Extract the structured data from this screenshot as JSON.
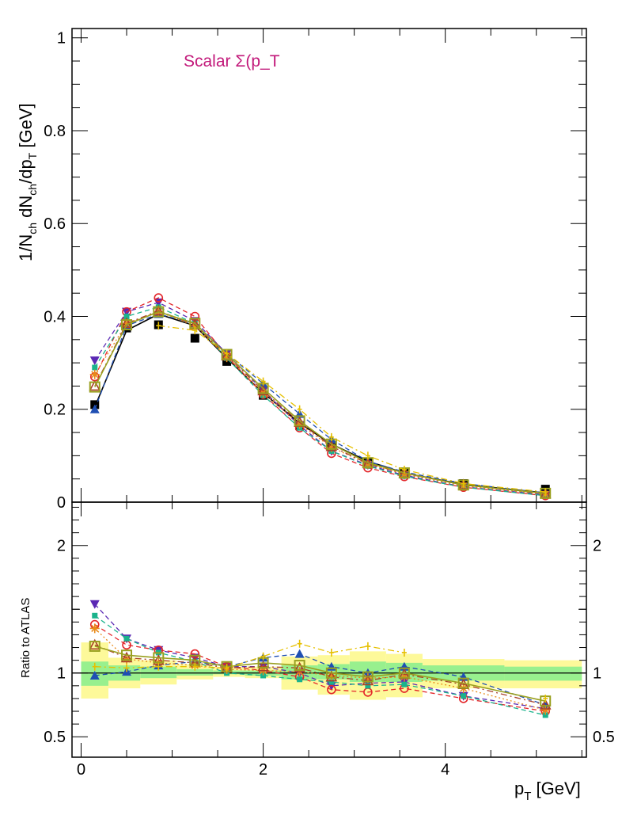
{
  "chart_data": [
    {
      "type": "line",
      "panel": "top",
      "title": "Scalar Σ(p_T",
      "title_color": "#c2187a",
      "ylabel": "1/N_ch dN_ch/dp_T [GeV]",
      "ylabel_parts": {
        "base": "1/N",
        "sub1": "ch",
        "mid": " dN",
        "sub2": "ch",
        "mid2": "/dp",
        "sub3": "T",
        "tail": " [GeV]"
      },
      "xlim": [
        -0.1,
        5.55
      ],
      "ylim": [
        0,
        1.02
      ],
      "y_ticks": [
        0,
        0.2,
        0.4,
        0.6,
        0.8,
        1
      ],
      "y_tick_labels": [
        "0",
        "0.2",
        "0.4",
        "0.6",
        "0.8",
        "1"
      ],
      "x": [
        0.15,
        0.5,
        0.85,
        1.25,
        1.6,
        2.0,
        2.4,
        2.75,
        3.15,
        3.55,
        4.2,
        5.1
      ],
      "series": [
        {
          "name": "",
          "marker": "square-filled",
          "color": "#000000",
          "style": "none",
          "y": [
            0.21,
            0.375,
            0.382,
            0.353,
            0.303,
            0.23,
            0.165,
            0.12,
            0.085,
            0.062,
            0.04,
            0.028
          ]
        },
        {
          "name": "",
          "marker": "none",
          "color": "#000000",
          "style": "solid",
          "y": [
            0.205,
            0.37,
            0.405,
            0.38,
            0.31,
            0.235,
            0.17,
            0.125,
            0.088,
            0.063,
            0.038,
            0.02
          ]
        },
        {
          "name": "",
          "marker": "triangle-down-filled",
          "color": "#5a28b4",
          "style": "dashed",
          "y": [
            0.305,
            0.41,
            0.43,
            0.39,
            0.32,
            0.24,
            0.165,
            0.11,
            0.08,
            0.058,
            0.033,
            0.016
          ]
        },
        {
          "name": "",
          "marker": "circle-open",
          "color": "#e3262a",
          "style": "dashed",
          "y": [
            0.27,
            0.41,
            0.44,
            0.4,
            0.315,
            0.232,
            0.16,
            0.105,
            0.074,
            0.055,
            0.032,
            0.014
          ]
        },
        {
          "name": "",
          "marker": "triangle-up-filled",
          "color": "#1f4fb3",
          "style": "dashed",
          "y": [
            0.2,
            0.38,
            0.405,
            0.385,
            0.32,
            0.255,
            0.19,
            0.135,
            0.088,
            0.065,
            0.04,
            0.02
          ]
        },
        {
          "name": "",
          "marker": "square-filled-small",
          "color": "#1ab38c",
          "style": "dashed",
          "y": [
            0.29,
            0.4,
            0.42,
            0.385,
            0.31,
            0.23,
            0.16,
            0.11,
            0.078,
            0.056,
            0.032,
            0.014
          ]
        },
        {
          "name": "",
          "marker": "star",
          "color": "#e88a1a",
          "style": "dotted",
          "y": [
            0.275,
            0.385,
            0.41,
            0.38,
            0.312,
            0.235,
            0.168,
            0.118,
            0.082,
            0.06,
            0.035,
            0.017
          ]
        },
        {
          "name": "",
          "marker": "triangle-up-open",
          "color": "#a8402a",
          "style": "dashdot",
          "y": [
            0.25,
            0.385,
            0.412,
            0.382,
            0.315,
            0.24,
            0.172,
            0.12,
            0.083,
            0.062,
            0.037,
            0.018
          ]
        },
        {
          "name": "",
          "marker": "square-open",
          "color": "#9aa020",
          "style": "solid",
          "y": [
            0.248,
            0.382,
            0.41,
            0.385,
            0.318,
            0.245,
            0.175,
            0.125,
            0.085,
            0.063,
            0.037,
            0.019
          ]
        },
        {
          "name": "",
          "marker": "plus-small",
          "color": "#e6c000",
          "style": "dashdot",
          "y": [
            null,
            null,
            0.38,
            0.37,
            0.32,
            0.26,
            0.2,
            0.14,
            0.1,
            0.07,
            0.04,
            0.022
          ]
        }
      ]
    },
    {
      "type": "line",
      "panel": "bottom",
      "ylabel": "Ratio to ATLAS",
      "xlabel": "p_T [GeV]",
      "xlabel_parts": {
        "base": "p",
        "sub": "T",
        "tail": " [GeV]"
      },
      "xlim": [
        -0.1,
        5.55
      ],
      "ylim": [
        0.34,
        2.34
      ],
      "x_ticks": [
        0,
        2,
        4
      ],
      "x_tick_labels": [
        "0",
        "2",
        "4"
      ],
      "y_ticks": [
        0.5,
        1,
        2
      ],
      "y_tick_labels": [
        "0.5",
        "1",
        "2"
      ],
      "reference_line": 1,
      "bands": [
        {
          "x0": 0.0,
          "x1": 0.3,
          "yellow": [
            0.8,
            1.24
          ],
          "green": [
            0.9,
            1.09
          ]
        },
        {
          "x0": 0.3,
          "x1": 0.65,
          "yellow": [
            0.88,
            1.12
          ],
          "green": [
            0.94,
            1.06
          ]
        },
        {
          "x0": 0.65,
          "x1": 1.05,
          "yellow": [
            0.91,
            1.1
          ],
          "green": [
            0.96,
            1.05
          ]
        },
        {
          "x0": 1.05,
          "x1": 1.45,
          "yellow": [
            0.95,
            1.07
          ],
          "green": [
            0.98,
            1.03
          ]
        },
        {
          "x0": 1.45,
          "x1": 1.8,
          "yellow": [
            0.97,
            1.05
          ],
          "green": [
            0.99,
            1.02
          ]
        },
        {
          "x0": 1.8,
          "x1": 2.2,
          "yellow": [
            0.96,
            1.05
          ],
          "green": [
            0.98,
            1.02
          ]
        },
        {
          "x0": 2.2,
          "x1": 2.6,
          "yellow": [
            0.87,
            1.13
          ],
          "green": [
            0.95,
            1.06
          ]
        },
        {
          "x0": 2.6,
          "x1": 2.95,
          "yellow": [
            0.83,
            1.14
          ],
          "green": [
            0.95,
            1.07
          ]
        },
        {
          "x0": 2.95,
          "x1": 3.35,
          "yellow": [
            0.79,
            1.17
          ],
          "green": [
            0.93,
            1.09
          ]
        },
        {
          "x0": 3.35,
          "x1": 3.75,
          "yellow": [
            0.81,
            1.15
          ],
          "green": [
            0.93,
            1.08
          ]
        },
        {
          "x0": 3.75,
          "x1": 4.65,
          "yellow": [
            0.88,
            1.11
          ],
          "green": [
            0.94,
            1.06
          ]
        },
        {
          "x0": 4.65,
          "x1": 5.5,
          "yellow": [
            0.88,
            1.1
          ],
          "green": [
            0.94,
            1.05
          ]
        }
      ],
      "series": [
        {
          "name": "",
          "marker": "triangle-down-filled",
          "color": "#5a28b4",
          "style": "dashed",
          "y": [
            1.54,
            1.27,
            1.18,
            1.12,
            1.05,
            1.05,
            1.0,
            0.9,
            0.92,
            0.93,
            0.82,
            0.72
          ]
        },
        {
          "name": "",
          "marker": "circle-open",
          "color": "#e3262a",
          "style": "dashed",
          "y": [
            1.38,
            1.22,
            1.18,
            1.15,
            1.05,
            1.02,
            0.97,
            0.87,
            0.85,
            0.88,
            0.8,
            0.7
          ]
        },
        {
          "name": "",
          "marker": "triangle-up-filled",
          "color": "#1f4fb3",
          "style": "dashed",
          "y": [
            0.98,
            1.01,
            1.06,
            1.09,
            1.05,
            1.12,
            1.15,
            1.05,
            1.0,
            1.05,
            0.97,
            0.75
          ]
        },
        {
          "name": "",
          "marker": "square-filled-small",
          "color": "#1ab38c",
          "style": "dashed",
          "y": [
            1.45,
            1.27,
            1.16,
            1.09,
            1.0,
            0.98,
            0.95,
            0.93,
            0.9,
            0.91,
            0.82,
            0.67
          ]
        },
        {
          "name": "",
          "marker": "star",
          "color": "#e88a1a",
          "style": "dotted",
          "y": [
            1.35,
            1.11,
            1.08,
            1.06,
            1.03,
            1.02,
            1.01,
            0.98,
            0.96,
            0.97,
            0.88,
            0.71
          ]
        },
        {
          "name": "",
          "marker": "triangle-up-open",
          "color": "#a8402a",
          "style": "dashdot",
          "y": [
            1.22,
            1.12,
            1.1,
            1.08,
            1.04,
            1.05,
            1.04,
            0.97,
            0.94,
            0.99,
            0.91,
            0.75
          ]
        },
        {
          "name": "",
          "marker": "square-open",
          "color": "#9aa020",
          "style": "solid",
          "y": [
            1.21,
            1.14,
            1.12,
            1.1,
            1.05,
            1.08,
            1.06,
            1.0,
            0.97,
            1.0,
            0.92,
            0.78
          ]
        },
        {
          "name": "",
          "marker": "plus-small",
          "color": "#e6c000",
          "style": "dashdot",
          "y": [
            1.05,
            1.04,
            1.05,
            1.05,
            1.04,
            1.13,
            1.23,
            1.16,
            1.21,
            1.16,
            null,
            0.8
          ]
        }
      ]
    }
  ]
}
